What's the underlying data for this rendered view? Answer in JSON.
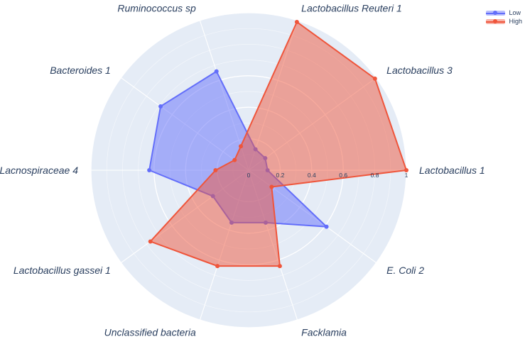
{
  "chart_data": {
    "type": "radar",
    "title": "",
    "categories": [
      "Lactobacillus 1",
      "Lactobacillus 3",
      "Lactobacillus Reuteri 1",
      "Ruminococcus sp",
      "Bacteroides 1",
      "Lacnospiraceae 4",
      "Lactobacillus gassei 1",
      "Unclassified bacteria",
      "Facklamia",
      "E. Coli 2"
    ],
    "series": [
      {
        "name": "Low",
        "color": "#636EFA",
        "fill_rgba": "rgba(99,110,250,0.5)",
        "values": [
          0.12,
          0.13,
          0.14,
          0.66,
          0.69,
          0.63,
          0.28,
          0.35,
          0.35,
          0.61
        ]
      },
      {
        "name": "High",
        "color": "#EF553B",
        "fill_rgba": "rgba(239,85,59,0.5)",
        "values": [
          1.0,
          0.99,
          0.99,
          0.16,
          0.11,
          0.21,
          0.77,
          0.64,
          0.64,
          0.18
        ]
      }
    ],
    "radial_axis": {
      "range": [
        0,
        1
      ],
      "ticks": [
        0,
        0.2,
        0.4,
        0.6,
        0.8,
        1
      ],
      "tick_labels": [
        "0",
        "0.2",
        "0.4",
        "0.6",
        "0.8",
        "1"
      ],
      "minor_tick_step": 0.1
    },
    "angular_axis": {
      "start_angle_deg": 0,
      "direction": "counterclockwise",
      "n_spokes": 10
    },
    "grid": true,
    "legend_position": "top-right",
    "colors": {
      "plot_background": "#E5ECF6",
      "grid_line": "#FFFFFF",
      "label_text": "#2A3F5F",
      "tick_text": "#2A3F5F"
    }
  },
  "legend": {
    "items": [
      {
        "label": "Low",
        "color": "#636EFA"
      },
      {
        "label": "High",
        "color": "#EF553B"
      }
    ]
  }
}
